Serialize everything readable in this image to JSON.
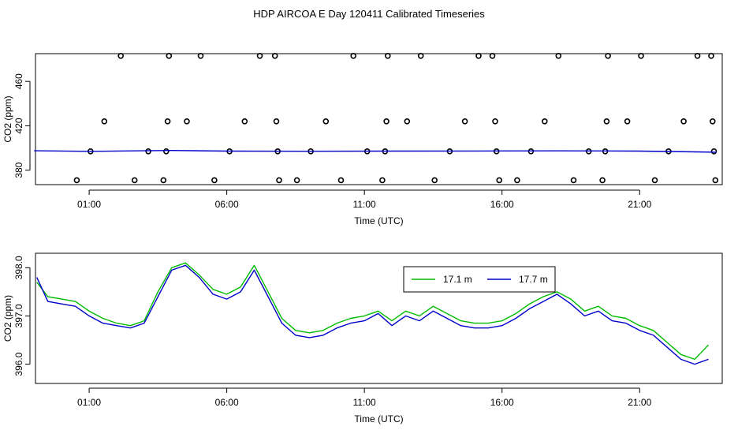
{
  "title": "HDP AIRCOA E  Day 120411  Calibrated Timeseries",
  "chart_data": [
    {
      "type": "scatter",
      "xlabel": "Time (UTC)",
      "ylabel": "CO2 (ppm)",
      "xlim": [
        -0.95,
        24.0
      ],
      "ylim": [
        367,
        485
      ],
      "xticks": [
        {
          "value": 1,
          "label": "01:00"
        },
        {
          "value": 6,
          "label": "06:00"
        },
        {
          "value": 11,
          "label": "11:00"
        },
        {
          "value": 16,
          "label": "16:00"
        },
        {
          "value": 21,
          "label": "21:00"
        }
      ],
      "yticks": [
        {
          "value": 380,
          "label": "380"
        },
        {
          "value": 420,
          "label": "420"
        },
        {
          "value": 460,
          "label": "460"
        }
      ],
      "series": [
        {
          "marker": "open-circle",
          "color": "#000000",
          "points": [
            [
              1.05,
              397
            ],
            [
              0.55,
              371
            ],
            [
              1.55,
              424
            ],
            [
              2.15,
              483
            ],
            [
              2.65,
              371
            ],
            [
              3.15,
              397
            ],
            [
              3.7,
              371
            ],
            [
              3.8,
              397
            ],
            [
              3.85,
              424
            ],
            [
              3.9,
              483
            ],
            [
              4.55,
              424
            ],
            [
              5.05,
              483
            ],
            [
              5.55,
              371
            ],
            [
              6.1,
              397
            ],
            [
              6.65,
              424
            ],
            [
              7.2,
              483
            ],
            [
              7.75,
              483
            ],
            [
              7.8,
              424
            ],
            [
              7.85,
              397
            ],
            [
              7.9,
              371
            ],
            [
              8.55,
              371
            ],
            [
              9.05,
              397
            ],
            [
              9.6,
              424
            ],
            [
              10.15,
              371
            ],
            [
              10.6,
              483
            ],
            [
              11.1,
              397
            ],
            [
              11.65,
              371
            ],
            [
              11.75,
              397
            ],
            [
              11.8,
              424
            ],
            [
              11.85,
              483
            ],
            [
              12.55,
              424
            ],
            [
              13.05,
              483
            ],
            [
              13.55,
              371
            ],
            [
              14.1,
              397
            ],
            [
              14.65,
              424
            ],
            [
              15.15,
              483
            ],
            [
              15.65,
              483
            ],
            [
              15.75,
              424
            ],
            [
              15.8,
              397
            ],
            [
              15.9,
              371
            ],
            [
              16.55,
              371
            ],
            [
              17.05,
              397
            ],
            [
              17.55,
              424
            ],
            [
              18.05,
              483
            ],
            [
              18.6,
              371
            ],
            [
              19.15,
              397
            ],
            [
              19.65,
              371
            ],
            [
              19.75,
              397
            ],
            [
              19.8,
              424
            ],
            [
              19.85,
              483
            ],
            [
              20.55,
              424
            ],
            [
              21.05,
              483
            ],
            [
              21.55,
              371
            ],
            [
              22.05,
              397
            ],
            [
              22.6,
              424
            ],
            [
              23.1,
              483
            ],
            [
              23.6,
              483
            ],
            [
              23.65,
              424
            ],
            [
              23.7,
              397
            ],
            [
              23.75,
              371
            ]
          ]
        },
        {
          "type": "line",
          "color": "#0000cc",
          "points": [
            [
              -1,
              397.5
            ],
            [
              1,
              397
            ],
            [
              4,
              397.8
            ],
            [
              6,
              397.2
            ],
            [
              9,
              397.1
            ],
            [
              12,
              397.2
            ],
            [
              15,
              397.3
            ],
            [
              18,
              397.4
            ],
            [
              21,
              397.2
            ],
            [
              23.8,
              396.2
            ]
          ]
        }
      ]
    },
    {
      "type": "line",
      "xlabel": "Time (UTC)",
      "ylabel": "CO2 (ppm)",
      "xlim": [
        -0.95,
        24.0
      ],
      "ylim": [
        395.6,
        398.3
      ],
      "xticks": [
        {
          "value": 1,
          "label": "01:00"
        },
        {
          "value": 6,
          "label": "06:00"
        },
        {
          "value": 11,
          "label": "11:00"
        },
        {
          "value": 16,
          "label": "16:00"
        },
        {
          "value": 21,
          "label": "21:00"
        }
      ],
      "yticks": [
        {
          "value": 396.0,
          "label": "396.0"
        },
        {
          "value": 397.0,
          "label": "397.0"
        },
        {
          "value": 398.0,
          "label": "398.0"
        }
      ],
      "legend": "top-center",
      "x": [
        -0.9,
        -0.5,
        0,
        0.5,
        1,
        1.5,
        2,
        2.5,
        3,
        3.5,
        4,
        4.5,
        5,
        5.5,
        6,
        6.5,
        7,
        7.5,
        8,
        8.5,
        9,
        9.5,
        10,
        10.5,
        11,
        11.5,
        12,
        12.5,
        13,
        13.5,
        14,
        14.5,
        15,
        15.5,
        16,
        16.5,
        17,
        17.5,
        18,
        18.5,
        19,
        19.5,
        20,
        20.5,
        21,
        21.5,
        22,
        22.5,
        23,
        23.5
      ],
      "series": [
        {
          "name": "17.1 m",
          "color": "#00bb00",
          "values": [
            397.7,
            397.4,
            397.35,
            397.3,
            397.1,
            396.95,
            396.85,
            396.8,
            396.9,
            397.5,
            398.0,
            398.1,
            397.85,
            397.55,
            397.45,
            397.6,
            398.05,
            397.5,
            396.95,
            396.7,
            396.65,
            396.7,
            396.85,
            396.95,
            397.0,
            397.1,
            396.9,
            397.1,
            397.0,
            397.2,
            397.05,
            396.9,
            396.85,
            396.85,
            396.9,
            397.05,
            397.25,
            397.4,
            397.5,
            397.35,
            397.1,
            397.2,
            397.0,
            396.95,
            396.8,
            396.7,
            396.45,
            396.2,
            396.1,
            396.4
          ]
        },
        {
          "name": "17.7 m",
          "color": "#0000cc",
          "values": [
            397.8,
            397.3,
            397.25,
            397.2,
            397.0,
            396.85,
            396.8,
            396.75,
            396.85,
            397.4,
            397.95,
            398.05,
            397.8,
            397.45,
            397.35,
            397.5,
            397.95,
            397.4,
            396.85,
            396.6,
            396.55,
            396.6,
            396.75,
            396.85,
            396.9,
            397.05,
            396.8,
            397.0,
            396.9,
            397.1,
            396.95,
            396.8,
            396.75,
            396.75,
            396.8,
            396.95,
            397.15,
            397.3,
            397.45,
            397.25,
            397.0,
            397.1,
            396.9,
            396.85,
            396.7,
            396.6,
            396.35,
            396.1,
            396.0,
            396.1
          ]
        }
      ]
    }
  ]
}
